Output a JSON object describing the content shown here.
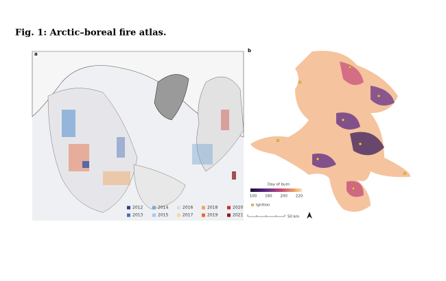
{
  "figure": {
    "title": "Fig. 1: Arctic–boreal fire atlas.",
    "panels": [
      {
        "label": "a",
        "legend": [
          {
            "label": "2012",
            "color": "#2b3f8f"
          },
          {
            "label": "2013",
            "color": "#4a6fb5"
          },
          {
            "label": "2014",
            "color": "#7aa6d6"
          },
          {
            "label": "2015",
            "color": "#a8c8e6"
          },
          {
            "label": "2016",
            "color": "#dcdcdc"
          },
          {
            "label": "2017",
            "color": "#f5d89a"
          },
          {
            "label": "2018",
            "color": "#f2a55c"
          },
          {
            "label": "2019",
            "color": "#e8673a"
          },
          {
            "label": "2020",
            "color": "#c8302c"
          },
          {
            "label": "2021",
            "color": "#8b1a1a"
          }
        ]
      },
      {
        "label": "b",
        "colorbar": {
          "title": "Day of burn",
          "ticks": [
            "100",
            "160",
            "200",
            "220"
          ]
        },
        "ignition": "Ignition",
        "scale": "50 km"
      }
    ]
  }
}
